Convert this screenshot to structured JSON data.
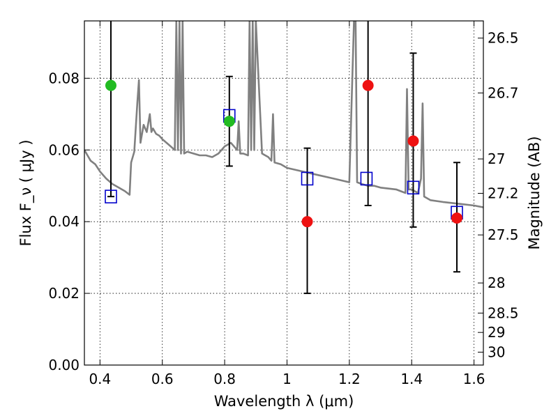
{
  "chart_data": {
    "type": "scatter",
    "xlabel": "Wavelength  λ (μm)",
    "ylabel": "Flux  F_ν  ( μJy )",
    "y2label": "Magnitude (AB)",
    "xlim": [
      0.35,
      1.63
    ],
    "ylim": [
      0.0,
      0.096
    ],
    "grid": true,
    "x_ticks": [
      0.4,
      0.6,
      0.8,
      1.0,
      1.2,
      1.4,
      1.6
    ],
    "x_tick_labels": [
      "0.4",
      "0.6",
      "0.8",
      "1",
      "1.2",
      "1.4",
      "1.6"
    ],
    "y_ticks": [
      0.0,
      0.02,
      0.04,
      0.06,
      0.08
    ],
    "y_tick_labels": [
      "0.00",
      "0.02",
      "0.04",
      "0.06",
      "0.08"
    ],
    "y2_ticks": [
      {
        "label": "26.5",
        "flux": 0.0912
      },
      {
        "label": "26.7",
        "flux": 0.0759
      },
      {
        "label": "27",
        "flux": 0.0575
      },
      {
        "label": "27.2",
        "flux": 0.0479
      },
      {
        "label": "27.5",
        "flux": 0.0363
      },
      {
        "label": "28",
        "flux": 0.0229
      },
      {
        "label": "28.5",
        "flux": 0.0145
      },
      {
        "label": "29",
        "flux": 0.0091
      },
      {
        "label": "30",
        "flux": 0.0036
      }
    ],
    "series": [
      {
        "kind": "model_spectrum",
        "color": "#808080",
        "x": [
          0.35,
          0.37,
          0.385,
          0.4,
          0.42,
          0.44,
          0.46,
          0.48,
          0.495,
          0.5,
          0.51,
          0.52,
          0.525,
          0.53,
          0.54,
          0.55,
          0.56,
          0.565,
          0.57,
          0.58,
          0.59,
          0.6,
          0.62,
          0.64,
          0.645,
          0.65,
          0.655,
          0.66,
          0.665,
          0.67,
          0.68,
          0.7,
          0.72,
          0.74,
          0.76,
          0.78,
          0.8,
          0.82,
          0.84,
          0.845,
          0.85,
          0.86,
          0.875,
          0.88,
          0.885,
          0.89,
          0.895,
          0.9,
          0.92,
          0.94,
          0.95,
          0.955,
          0.96,
          0.98,
          1.0,
          1.05,
          1.1,
          1.15,
          1.2,
          1.215,
          1.22,
          1.225,
          1.24,
          1.26,
          1.28,
          1.3,
          1.35,
          1.38,
          1.385,
          1.39,
          1.4,
          1.42,
          1.43,
          1.435,
          1.44,
          1.46,
          1.5,
          1.55,
          1.6,
          1.63
        ],
        "y": [
          0.06,
          0.057,
          0.056,
          0.054,
          0.052,
          0.0505,
          0.0495,
          0.0485,
          0.0475,
          0.0565,
          0.0595,
          0.0735,
          0.0795,
          0.062,
          0.067,
          0.065,
          0.07,
          0.065,
          0.066,
          0.0645,
          0.064,
          0.063,
          0.0615,
          0.06,
          0.096,
          0.06,
          0.096,
          0.059,
          0.096,
          0.059,
          0.0595,
          0.059,
          0.0585,
          0.0585,
          0.058,
          0.059,
          0.061,
          0.062,
          0.06,
          0.068,
          0.059,
          0.059,
          0.0585,
          0.096,
          0.06,
          0.096,
          0.06,
          0.096,
          0.059,
          0.058,
          0.057,
          0.07,
          0.0565,
          0.056,
          0.055,
          0.054,
          0.053,
          0.052,
          0.051,
          0.096,
          0.096,
          0.051,
          0.0505,
          0.05,
          0.05,
          0.0495,
          0.049,
          0.048,
          0.077,
          0.049,
          0.049,
          0.048,
          0.052,
          0.073,
          0.047,
          0.046,
          0.0455,
          0.045,
          0.0445,
          0.044
        ]
      },
      {
        "kind": "model_photometry",
        "marker": "square",
        "color": "#0000cc",
        "x": [
          0.435,
          0.815,
          1.065,
          1.255,
          1.405,
          1.545
        ],
        "y": [
          0.047,
          0.0695,
          0.052,
          0.052,
          0.0495,
          0.0425
        ]
      },
      {
        "kind": "observed_green",
        "marker": "circle",
        "color": "#22bb22",
        "x": [
          0.435,
          0.815
        ],
        "y": [
          0.078,
          0.068
        ],
        "yerr_low": [
          0.047,
          0.0555
        ],
        "yerr_high": [
          0.096,
          0.0805
        ]
      },
      {
        "kind": "observed_red",
        "marker": "circle",
        "color": "#ee1111",
        "x": [
          1.065,
          1.26,
          1.405,
          1.545
        ],
        "y": [
          0.04,
          0.078,
          0.0625,
          0.041
        ],
        "yerr_low": [
          0.02,
          0.0445,
          0.0385,
          0.026
        ],
        "yerr_high": [
          0.0605,
          0.096,
          0.087,
          0.0565
        ]
      }
    ]
  }
}
